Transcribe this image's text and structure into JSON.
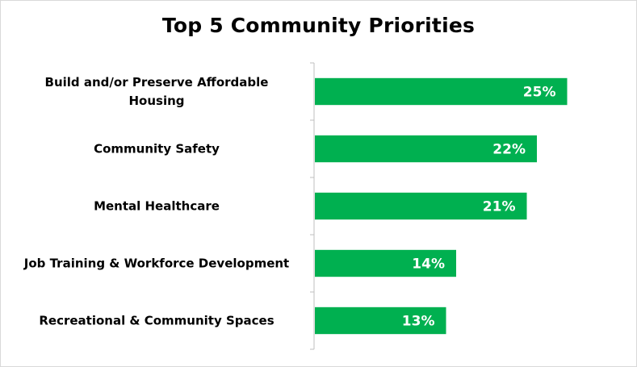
{
  "chart_data": {
    "type": "bar",
    "orientation": "horizontal",
    "title": "Top 5 Community Priorities",
    "categories": [
      [
        "Build and/or Preserve Affordable",
        "Housing"
      ],
      [
        "Community Safety"
      ],
      [
        "Mental Healthcare"
      ],
      [
        "Job Training & Workforce Development"
      ],
      [
        "Recreational & Community Spaces"
      ]
    ],
    "values": [
      25,
      22,
      21,
      14,
      13
    ],
    "value_labels": [
      "25%",
      "22%",
      "21%",
      "14%",
      "13%"
    ],
    "xlim": [
      0,
      30
    ],
    "grid": false,
    "legend": "none",
    "bar_color": "#00b050"
  }
}
